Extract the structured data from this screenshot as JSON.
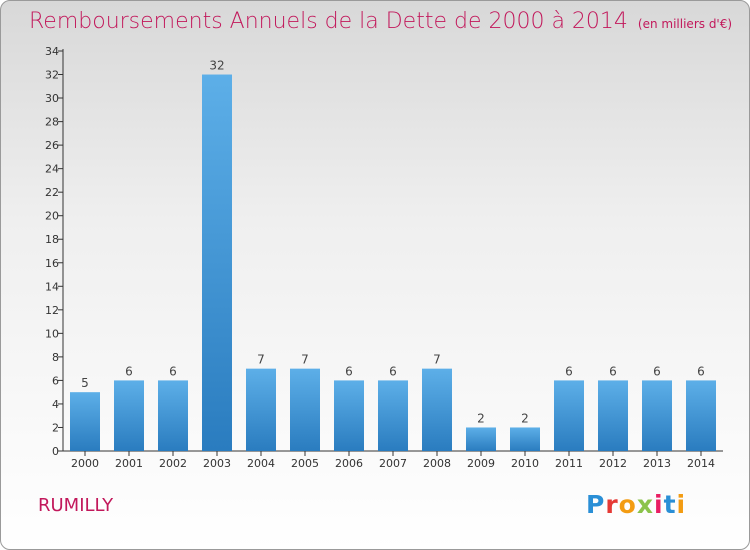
{
  "header": {
    "title": "Remboursements Annuels de la Dette de 2000 à 2014",
    "unit": "(en milliers d'€)"
  },
  "footer": {
    "city": "RUMILLY",
    "logo": "Proxiti"
  },
  "colors": {
    "title": "#c2185b",
    "bar_top": "#5dafe8",
    "bar_bottom": "#2a7cbf",
    "axis": "#333333"
  },
  "chart_data": {
    "type": "bar",
    "categories": [
      "2000",
      "2001",
      "2002",
      "2003",
      "2004",
      "2005",
      "2006",
      "2007",
      "2008",
      "2009",
      "2010",
      "2011",
      "2012",
      "2013",
      "2014"
    ],
    "values": [
      5,
      6,
      6,
      32,
      7,
      7,
      6,
      6,
      7,
      2,
      2,
      6,
      6,
      6,
      6
    ],
    "y_ticks": [
      0,
      2,
      4,
      6,
      8,
      10,
      12,
      14,
      16,
      18,
      20,
      22,
      24,
      26,
      28,
      30,
      32,
      34
    ],
    "ylim": [
      0,
      34
    ],
    "grid": false,
    "data_labels": true
  }
}
